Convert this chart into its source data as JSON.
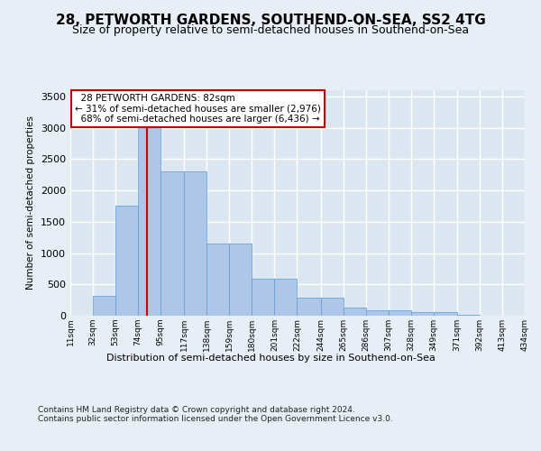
{
  "title": "28, PETWORTH GARDENS, SOUTHEND-ON-SEA, SS2 4TG",
  "subtitle": "Size of property relative to semi-detached houses in Southend-on-Sea",
  "xlabel": "Distribution of semi-detached houses by size in Southend-on-Sea",
  "ylabel": "Number of semi-detached properties",
  "property_size": 82,
  "property_label": "28 PETWORTH GARDENS: 82sqm",
  "smaller_pct": 31,
  "smaller_count": 2976,
  "larger_pct": 68,
  "larger_count": 6436,
  "bin_edges": [
    11,
    32,
    53,
    74,
    95,
    117,
    138,
    159,
    180,
    201,
    222,
    244,
    265,
    286,
    307,
    328,
    349,
    371,
    392,
    413,
    434
  ],
  "bar_heights": [
    5,
    310,
    1750,
    3380,
    2300,
    2300,
    1150,
    1150,
    590,
    590,
    290,
    290,
    130,
    80,
    80,
    55,
    55,
    10,
    5,
    3
  ],
  "bar_color": "#aec6e8",
  "bar_edge_color": "#5b9bd5",
  "vline_color": "#cc0000",
  "background_color": "#e8eef5",
  "plot_bg_color": "#dce6f0",
  "grid_color": "#ffffff",
  "annotation_box_color": "#ffffff",
  "annotation_box_edge_color": "#cc0000",
  "footer_text": "Contains HM Land Registry data © Crown copyright and database right 2024.\nContains public sector information licensed under the Open Government Licence v3.0.",
  "ylim": [
    0,
    3600
  ],
  "title_fontsize": 11,
  "subtitle_fontsize": 9,
  "tick_labels": [
    "11sqm",
    "32sqm",
    "53sqm",
    "74sqm",
    "95sqm",
    "117sqm",
    "138sqm",
    "159sqm",
    "180sqm",
    "201sqm",
    "222sqm",
    "244sqm",
    "265sqm",
    "286sqm",
    "307sqm",
    "328sqm",
    "349sqm",
    "371sqm",
    "392sqm",
    "413sqm",
    "434sqm"
  ]
}
